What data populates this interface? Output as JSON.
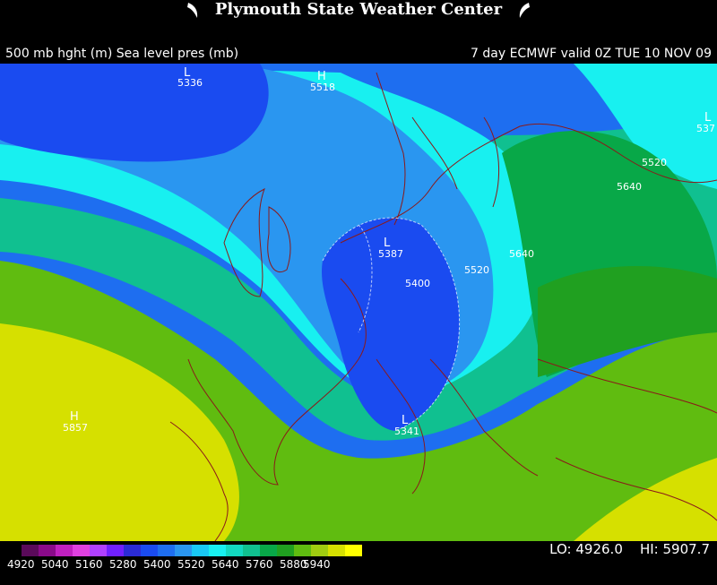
{
  "header": {
    "title": "Plymouth State Weather Center",
    "left_label": "500 mb hght (m) Sea level pres (mb)",
    "right_label": "7 day ECMWF  valid 0Z TUE 10 NOV 09"
  },
  "map": {
    "region": "Europe and North Atlantic",
    "pressure_centers": [
      {
        "symbol": "L",
        "value": "5336"
      },
      {
        "symbol": "H",
        "value": "5518"
      },
      {
        "symbol": "L",
        "value": "5387"
      },
      {
        "symbol": "L",
        "value": "5341"
      },
      {
        "symbol": "H",
        "value": "5857"
      },
      {
        "symbol": "L",
        "value": "537"
      }
    ],
    "contour_labels": [
      "5400",
      "5520",
      "5640",
      "5520",
      "5640"
    ]
  },
  "legend": {
    "ticks": [
      "4920",
      "5040",
      "5160",
      "5280",
      "5400",
      "5520",
      "5640",
      "5760",
      "5880",
      "5940"
    ],
    "colors": [
      "#5a0a5a",
      "#8a0a8a",
      "#c020c0",
      "#e040e0",
      "#b040ff",
      "#7020ff",
      "#2b2bd6",
      "#1a4bf0",
      "#1e6ef0",
      "#2a96f0",
      "#19c8f5",
      "#18f0f0",
      "#12d8c0",
      "#10c090",
      "#08a848",
      "#20a020",
      "#60bc10",
      "#a0cc10",
      "#d6e000",
      "#ffff00"
    ],
    "lo_label": "LO:",
    "lo_value": "4926.0",
    "hi_label": "HI:",
    "hi_value": "5907.7"
  }
}
